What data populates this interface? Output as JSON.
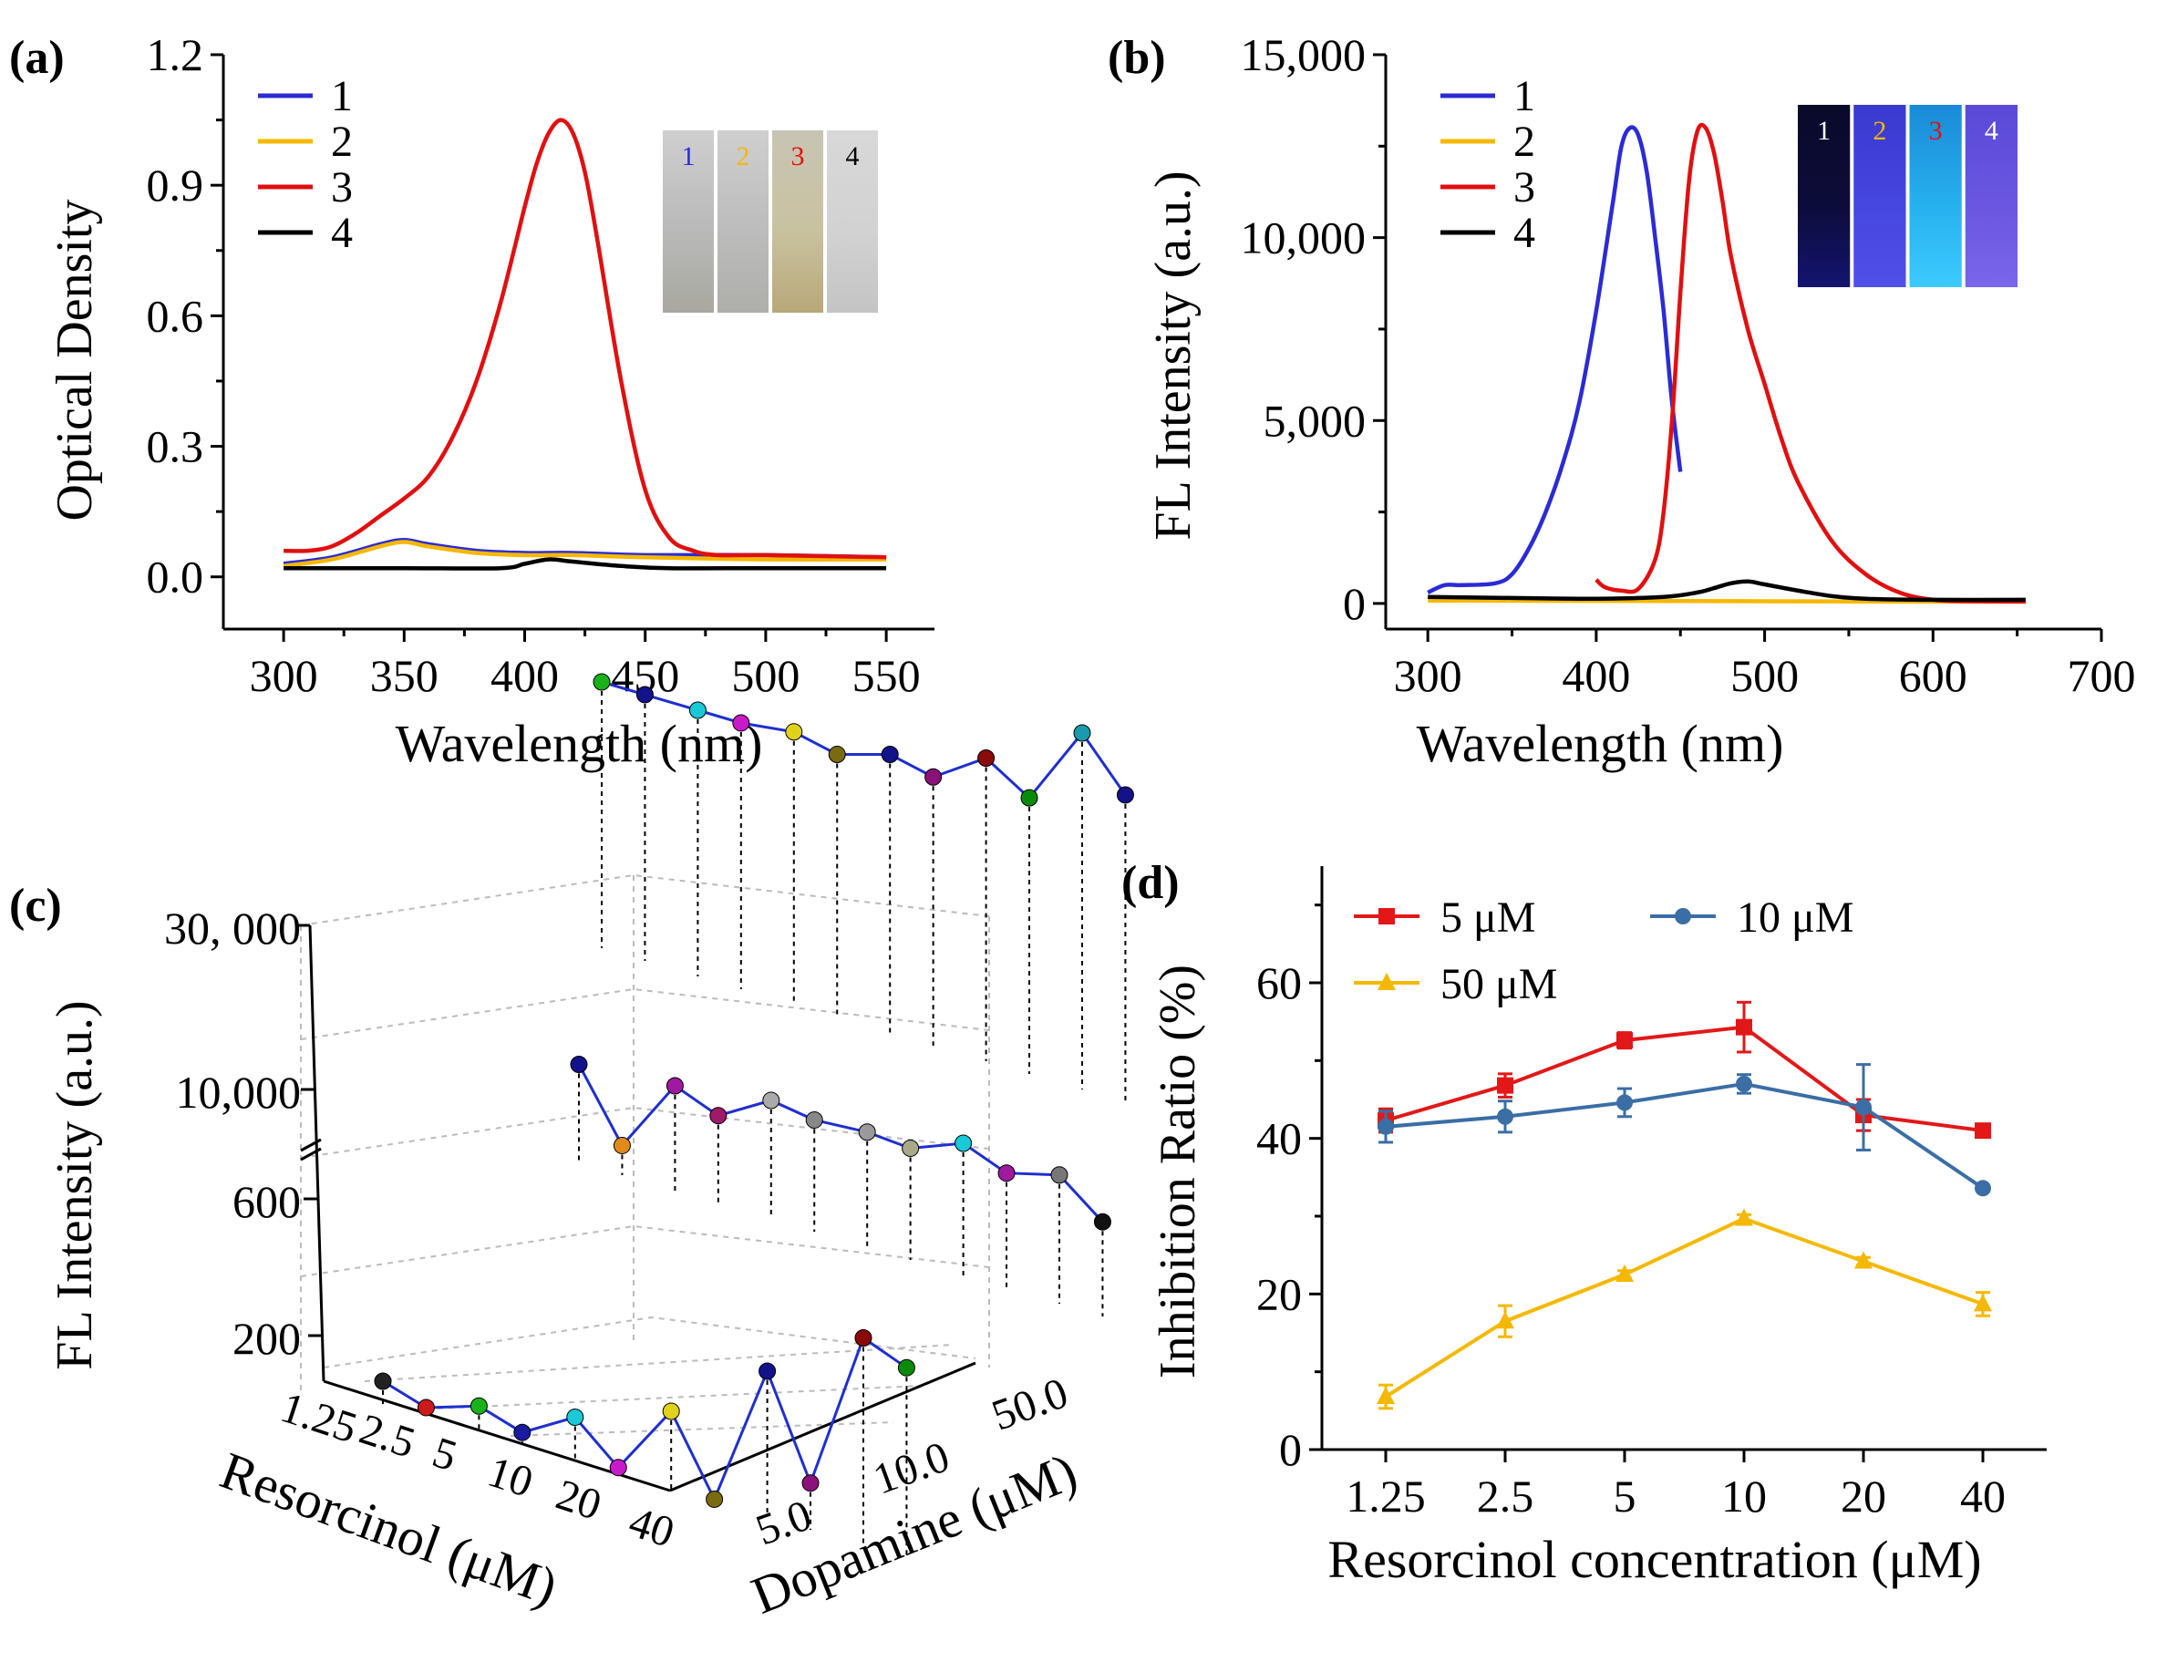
{
  "panels": {
    "a": {
      "label": "(a)",
      "chart_data": {
        "type": "line",
        "xlabel": "Wavelength (nm)",
        "ylabel": "Optical Density",
        "xlim": [
          275,
          570
        ],
        "ylim": [
          -0.12,
          1.2
        ],
        "xticks": [
          300,
          350,
          400,
          450,
          500,
          550
        ],
        "xtick_labels": [
          "300",
          "350",
          "400",
          "450",
          "500",
          "550"
        ],
        "yticks": [
          0.0,
          0.3,
          0.6,
          0.9,
          1.2
        ],
        "ytick_labels": [
          "0.0",
          "0.3",
          "0.6",
          "0.9",
          "1.2"
        ],
        "legend": [
          "1",
          "2",
          "3",
          "4"
        ],
        "series": [
          {
            "name": "1",
            "color": "#2b2bd6",
            "x": [
              300,
              320,
              340,
              350,
              360,
              380,
              400,
              420,
              450,
              500,
              550
            ],
            "y": [
              0.03,
              0.045,
              0.075,
              0.085,
              0.075,
              0.06,
              0.055,
              0.055,
              0.05,
              0.05,
              0.045
            ]
          },
          {
            "name": "2",
            "color": "#f5b800",
            "x": [
              300,
              320,
              340,
              350,
              360,
              380,
              400,
              420,
              450,
              500,
              550
            ],
            "y": [
              0.025,
              0.04,
              0.07,
              0.08,
              0.07,
              0.055,
              0.05,
              0.05,
              0.045,
              0.04,
              0.04
            ]
          },
          {
            "name": "3",
            "color": "#e01010",
            "x": [
              300,
              310,
              320,
              330,
              340,
              350,
              360,
              370,
              380,
              390,
              400,
              405,
              410,
              415,
              420,
              425,
              430,
              440,
              450,
              460,
              470,
              480,
              500,
              550
            ],
            "y": [
              0.06,
              0.06,
              0.07,
              0.1,
              0.14,
              0.18,
              0.23,
              0.32,
              0.45,
              0.63,
              0.85,
              0.95,
              1.02,
              1.05,
              1.02,
              0.93,
              0.78,
              0.45,
              0.2,
              0.09,
              0.06,
              0.05,
              0.05,
              0.045
            ]
          },
          {
            "name": "4",
            "color": "#000000",
            "x": [
              300,
              350,
              390,
              400,
              410,
              420,
              440,
              460,
              500,
              550
            ],
            "y": [
              0.02,
              0.02,
              0.02,
              0.03,
              0.04,
              0.035,
              0.025,
              0.02,
              0.02,
              0.02
            ]
          }
        ]
      },
      "inset": {
        "vials": [
          {
            "label": "1",
            "label_color": "#2b2bd6",
            "top": "#cfcfcf",
            "body": "#b9b9b9",
            "bottom": "#a8a8a0"
          },
          {
            "label": "2",
            "label_color": "#f5b800",
            "top": "#cfcfcf",
            "body": "#bcbcbc",
            "bottom": "#aeaeaa"
          },
          {
            "label": "3",
            "label_color": "#e01010",
            "top": "#c8c4b4",
            "body": "#c9c2a0",
            "bottom": "#b8a878"
          },
          {
            "label": "4",
            "label_color": "#000000",
            "top": "#d8d8d8",
            "body": "#d2d2d2",
            "bottom": "#c4c4c4"
          }
        ]
      }
    },
    "b": {
      "label": "(b)",
      "chart_data": {
        "type": "line",
        "xlabel": "Wavelength (nm)",
        "ylabel": "FL Intensity (a.u.)",
        "xlim": [
          275,
          700
        ],
        "ylim": [
          -700,
          15000
        ],
        "xticks": [
          300,
          400,
          500,
          600,
          700
        ],
        "xtick_labels": [
          "300",
          "400",
          "500",
          "600",
          "700"
        ],
        "yticks": [
          0,
          5000,
          10000,
          15000
        ],
        "ytick_labels": [
          "0",
          "5,000",
          "10,000",
          "15,000"
        ],
        "legend": [
          "1",
          "2",
          "3",
          "4"
        ],
        "series": [
          {
            "name": "1",
            "color": "#2b2bd6",
            "x": [
              300,
              310,
              320,
              340,
              350,
              360,
              370,
              380,
              390,
              400,
              410,
              415,
              420,
              425,
              430,
              435,
              440,
              445,
              450
            ],
            "y": [
              300,
              500,
              500,
              550,
              800,
              1500,
              2500,
              3800,
              5500,
              8000,
              11000,
              12500,
              13000,
              12800,
              11800,
              10000,
              8000,
              5500,
              3600
            ]
          },
          {
            "name": "2",
            "color": "#f5b800",
            "x": [
              300,
              400,
              500,
              600,
              655
            ],
            "y": [
              80,
              70,
              60,
              50,
              50
            ]
          },
          {
            "name": "3",
            "color": "#e01010",
            "x": [
              400,
              405,
              415,
              425,
              435,
              440,
              445,
              450,
              455,
              460,
              465,
              470,
              475,
              480,
              490,
              500,
              510,
              520,
              540,
              560,
              580,
              600,
              620,
              655
            ],
            "y": [
              650,
              450,
              350,
              400,
              1200,
              2500,
              5000,
              8500,
              11500,
              12900,
              13000,
              12300,
              11000,
              9500,
              7500,
              6000,
              4500,
              3300,
              1700,
              800,
              300,
              100,
              60,
              50
            ]
          },
          {
            "name": "4",
            "color": "#000000",
            "x": [
              300,
              350,
              400,
              440,
              460,
              470,
              480,
              490,
              500,
              520,
              540,
              560,
              600,
              655
            ],
            "y": [
              180,
              150,
              130,
              180,
              300,
              420,
              550,
              600,
              520,
              350,
              200,
              130,
              100,
              100
            ]
          }
        ]
      },
      "inset": {
        "vials": [
          {
            "label": "1",
            "label_color": "#ffffff",
            "top": "#0a0a2a",
            "body": "#0c0c3a",
            "bottom": "#141470"
          },
          {
            "label": "2",
            "label_color": "#f5b800",
            "top": "#3a3ad0",
            "body": "#4646e0",
            "bottom": "#5050e8"
          },
          {
            "label": "3",
            "label_color": "#e01010",
            "top": "#1a8ad8",
            "body": "#27b0ee",
            "bottom": "#3ccaff"
          },
          {
            "label": "4",
            "label_color": "#ffffff",
            "top": "#5a4ad8",
            "body": "#6a56e0",
            "bottom": "#7a66ea"
          }
        ]
      }
    },
    "c": {
      "label": "(c)",
      "chart_data": {
        "type": "scatter3d",
        "zlabel": "FL Intensity (a.u.)",
        "xlabel": "Resorcinol (μM)",
        "ylabel": "Dopamine (μM)",
        "x_tick_labels": [
          "1.25",
          "2.5",
          "5",
          "10",
          "20",
          "40"
        ],
        "y_tick_labels": [
          "5.0",
          "10.0",
          "50.0"
        ],
        "z_tick_labels": [
          "200",
          "600",
          "10,000",
          "30, 000"
        ],
        "z_axis_break": true,
        "series": [
          {
            "name": "Dopamine 5.0 μM",
            "color": "#1f2fd0",
            "x": [
              1.25,
              1.25,
              2.5,
              2.5,
              5,
              5,
              10,
              10,
              20,
              20,
              40,
              40
            ],
            "z": [
              160,
              120,
              170,
              130,
              220,
              110,
              320,
              100,
              520,
              230,
              700,
              650
            ],
            "point_colors": [
              "#222222",
              "#cc1a1a",
              "#19b219",
              "#1a1aa0",
              "#1ac8d8",
              "#c81ac8",
              "#e0d21a",
              "#7a6a10",
              "#12128a",
              "#8a127a",
              "#8a0a0a",
              "#0a8a0a"
            ]
          },
          {
            "name": "Dopamine 10.0 μM",
            "color": "#1f2fd0",
            "x": [
              1.25,
              1.25,
              2.5,
              2.5,
              5,
              5,
              10,
              10,
              20,
              20,
              40,
              40
            ],
            "z": [
              380,
              180,
              400,
              350,
              440,
              420,
              430,
              420,
              480,
              430,
              470,
              370
            ],
            "point_colors": [
              "#12128a",
              "#e08a1a",
              "#a01aa0",
              "#a01a6a",
              "#aaaaaa",
              "#888888",
              "#9a9a9a",
              "#aaaa8a",
              "#1ac8d8",
              "#a01aa0",
              "#777777",
              "#111111"
            ]
          },
          {
            "name": "Dopamine 50.0 μM",
            "color": "#1f2fd0",
            "x": [
              1.25,
              1.25,
              2.5,
              2.5,
              5,
              5,
              10,
              10,
              20,
              20,
              40,
              40
            ],
            "z": [
              8000,
              8000,
              8000,
              8000,
              8800,
              7600,
              9500,
              8300,
              12500,
              9200,
              19000,
              13000
            ],
            "point_colors": [
              "#19b219",
              "#12128a",
              "#1ac8d8",
              "#c81ac8",
              "#e0d21a",
              "#7a6a10",
              "#12128a",
              "#8a127a",
              "#8a0a0a",
              "#0a8a0a",
              "#1a9aaa",
              "#12128a"
            ]
          }
        ]
      }
    },
    "d": {
      "label": "(d)",
      "chart_data": {
        "type": "line",
        "xlabel": "Resorcinol concentration (μM)",
        "ylabel": "Inhibition Ratio (%)",
        "categories": [
          "1.25",
          "2.5",
          "5",
          "10",
          "20",
          "40"
        ],
        "ylim": [
          0,
          75
        ],
        "yticks": [
          0,
          20,
          40,
          60
        ],
        "ytick_labels": [
          "0",
          "20",
          "40",
          "60"
        ],
        "legend": [
          "5 μM",
          "10 μM",
          "50 μM"
        ],
        "series": [
          {
            "name": "5 μM",
            "color": "#e21818",
            "marker": "square",
            "values": [
              42.3,
              46.8,
              52.6,
              54.3,
              43.0,
              41.0
            ],
            "errors": [
              1.5,
              1.5,
              1.0,
              3.2,
              2.0,
              0
            ]
          },
          {
            "name": "10 μM",
            "color": "#3a6ea5",
            "marker": "circle",
            "values": [
              41.5,
              42.8,
              44.6,
              47.0,
              44.0,
              33.6
            ],
            "errors": [
              2.0,
              2.0,
              1.8,
              1.2,
              5.5,
              0
            ]
          },
          {
            "name": "50 μM",
            "color": "#f5b800",
            "marker": "triangle",
            "values": [
              6.8,
              16.5,
              22.5,
              29.7,
              24.2,
              18.7
            ],
            "errors": [
              1.5,
              2.0,
              0.5,
              0.5,
              0.5,
              1.5
            ]
          }
        ]
      }
    }
  }
}
